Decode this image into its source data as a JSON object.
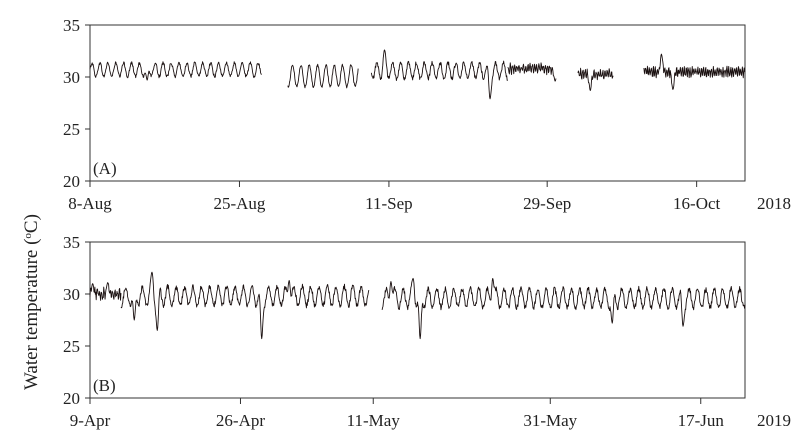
{
  "chart_data": [
    {
      "type": "line",
      "panel_label": "(A)",
      "year_label": "2018",
      "x_ticks": [
        "8-Aug",
        "25-Aug",
        "11-Sep",
        "29-Sep",
        "16-Oct"
      ],
      "x_tick_days": [
        0,
        17,
        34,
        52,
        69
      ],
      "x_range_days": [
        0,
        74.5
      ],
      "y_ticks": [
        "20",
        "25",
        "30",
        "35"
      ],
      "ylim": [
        20,
        35
      ],
      "segments": [
        {
          "start_day": 0.0,
          "end_day": 19.5,
          "base": 30.7,
          "amp": 0.65,
          "period": 0.9,
          "noise": 0.15,
          "spikes": [
            {
              "day": 6.5,
              "value": 29.7
            }
          ]
        },
        {
          "start_day": 22.5,
          "end_day": 30.5,
          "base": 30.1,
          "amp": 1.05,
          "period": 0.95,
          "noise": 0.12,
          "spikes": []
        },
        {
          "start_day": 32.0,
          "end_day": 47.5,
          "base": 30.6,
          "amp": 0.75,
          "period": 0.9,
          "noise": 0.2,
          "spikes": [
            {
              "day": 33.5,
              "value": 32.6
            },
            {
              "day": 45.5,
              "value": 27.9
            }
          ]
        },
        {
          "start_day": 47.5,
          "end_day": 53.0,
          "base": 30.8,
          "amp": 0.35,
          "period": 0.25,
          "noise": 0.25,
          "spikes": [
            {
              "day": 52.9,
              "value": 29.6
            }
          ]
        },
        {
          "start_day": 55.5,
          "end_day": 59.5,
          "base": 30.3,
          "amp": 0.35,
          "period": 0.25,
          "noise": 0.25,
          "spikes": [
            {
              "day": 56.9,
              "value": 28.7
            }
          ]
        },
        {
          "start_day": 63.0,
          "end_day": 74.5,
          "base": 30.5,
          "amp": 0.35,
          "period": 0.22,
          "noise": 0.25,
          "spikes": [
            {
              "day": 65.0,
              "value": 32.2
            },
            {
              "day": 66.3,
              "value": 28.8
            }
          ]
        }
      ]
    },
    {
      "type": "line",
      "panel_label": "(B)",
      "year_label": "2019",
      "x_ticks": [
        "9-Apr",
        "26-Apr",
        "11-May",
        "31-May",
        "17-Jun"
      ],
      "x_tick_days": [
        0,
        17,
        32,
        52,
        69
      ],
      "x_range_days": [
        0,
        74
      ],
      "y_ticks": [
        "20",
        "25",
        "30",
        "35"
      ],
      "ylim": [
        20,
        35
      ],
      "segments": [
        {
          "start_day": 0.0,
          "end_day": 3.5,
          "base": 30.0,
          "amp": 0.35,
          "period": 0.25,
          "noise": 0.35,
          "spikes": [
            {
              "day": 0.3,
              "value": 31.0
            },
            {
              "day": 2.0,
              "value": 31.1
            }
          ]
        },
        {
          "start_day": 3.5,
          "end_day": 31.5,
          "base": 29.8,
          "amp": 0.9,
          "period": 0.95,
          "noise": 0.25,
          "spikes": [
            {
              "day": 5.0,
              "value": 27.5
            },
            {
              "day": 7.0,
              "value": 32.1
            },
            {
              "day": 7.6,
              "value": 26.5
            },
            {
              "day": 19.4,
              "value": 25.7
            },
            {
              "day": 22.5,
              "value": 31.3
            }
          ]
        },
        {
          "start_day": 33.0,
          "end_day": 74.0,
          "base": 29.6,
          "amp": 0.9,
          "period": 0.95,
          "noise": 0.25,
          "spikes": [
            {
              "day": 34.0,
              "value": 31.2
            },
            {
              "day": 36.5,
              "value": 31.5
            },
            {
              "day": 37.3,
              "value": 25.7
            },
            {
              "day": 45.5,
              "value": 31.5
            },
            {
              "day": 59.0,
              "value": 27.2
            },
            {
              "day": 67.0,
              "value": 26.9
            }
          ]
        }
      ]
    }
  ],
  "ylabel_text": "Water temperature (",
  "ylabel_unit_sup": "o",
  "ylabel_unit": "C)"
}
